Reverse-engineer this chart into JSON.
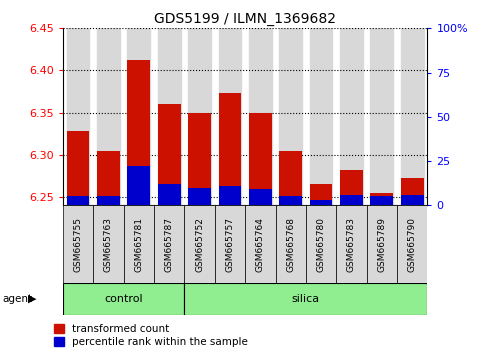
{
  "title": "GDS5199 / ILMN_1369682",
  "samples": [
    "GSM665755",
    "GSM665763",
    "GSM665781",
    "GSM665787",
    "GSM665752",
    "GSM665757",
    "GSM665764",
    "GSM665768",
    "GSM665780",
    "GSM665783",
    "GSM665789",
    "GSM665790"
  ],
  "groups": [
    "control",
    "control",
    "control",
    "control",
    "silica",
    "silica",
    "silica",
    "silica",
    "silica",
    "silica",
    "silica",
    "silica"
  ],
  "transformed_count": [
    6.328,
    6.305,
    6.412,
    6.36,
    6.35,
    6.373,
    6.35,
    6.304,
    6.265,
    6.282,
    6.255,
    6.273
  ],
  "percentile_rank": [
    5.5,
    5.5,
    22,
    12,
    10,
    11,
    9,
    5,
    3,
    6,
    5,
    6
  ],
  "ylim_left": [
    6.24,
    6.45
  ],
  "ylim_right": [
    0,
    100
  ],
  "yticks_left": [
    6.25,
    6.3,
    6.35,
    6.4,
    6.45
  ],
  "yticks_right": [
    0,
    25,
    50,
    75,
    100
  ],
  "bar_color": "#cc1100",
  "percentile_color": "#0000cc",
  "background_bar": "#d8d8d8",
  "control_color": "#90ee90",
  "silica_color": "#90ee90",
  "bar_base": 6.24,
  "group_label": "agent",
  "legend_items": [
    "transformed count",
    "percentile rank within the sample"
  ],
  "control_count": 4,
  "silica_count": 8
}
